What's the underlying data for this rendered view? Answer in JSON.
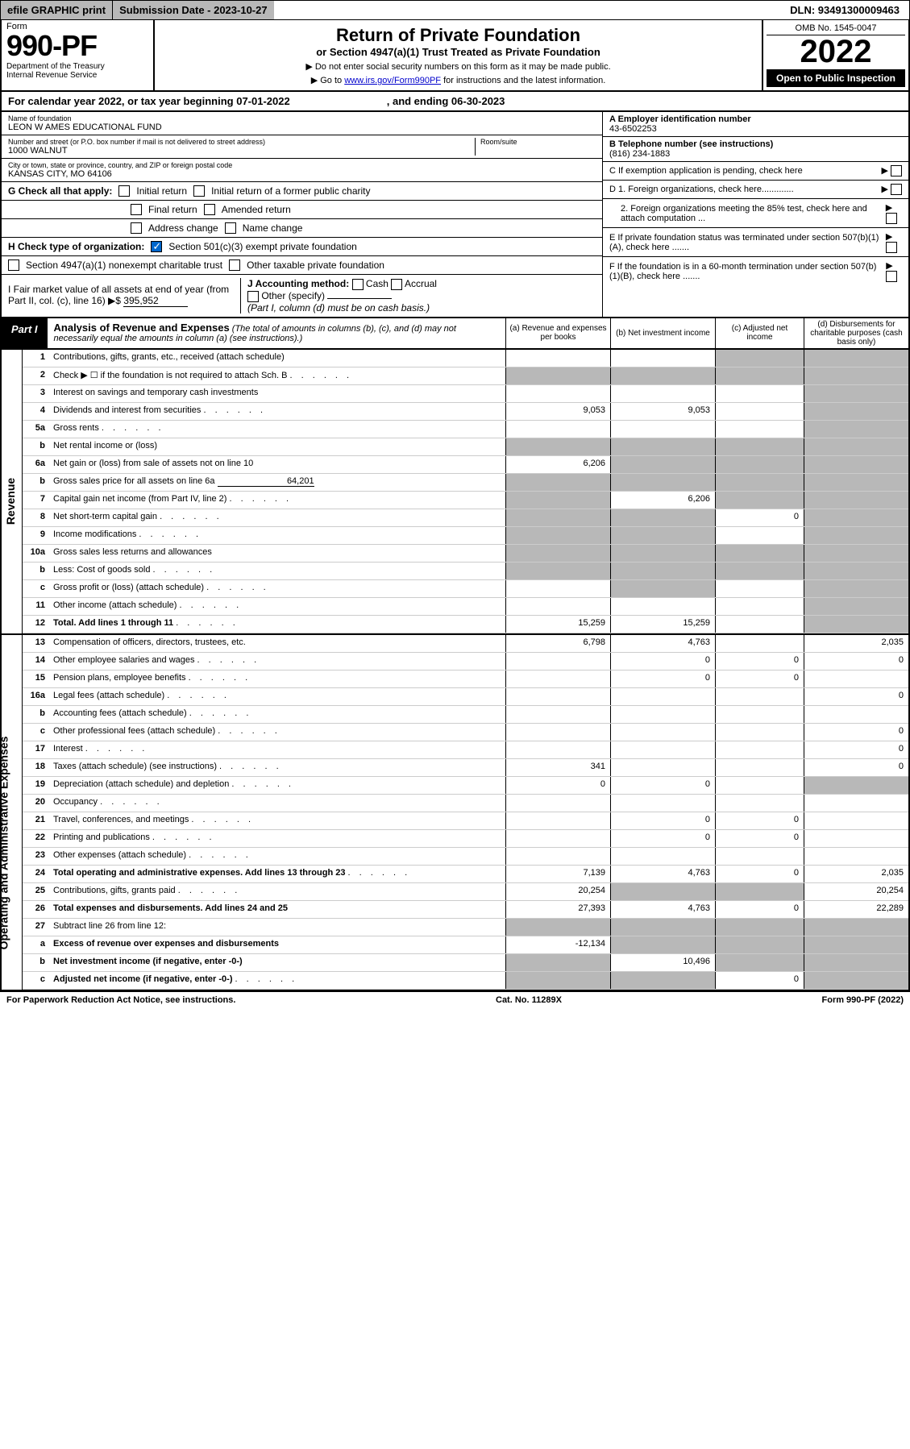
{
  "topbar": {
    "efile": "efile GRAPHIC print",
    "submission": "Submission Date - 2023-10-27",
    "dln": "DLN: 93491300009463"
  },
  "header": {
    "form_label": "Form",
    "form_num": "990-PF",
    "dept": "Department of the Treasury\nInternal Revenue Service",
    "title": "Return of Private Foundation",
    "subtitle": "or Section 4947(a)(1) Trust Treated as Private Foundation",
    "instr1": "▶ Do not enter social security numbers on this form as it may be made public.",
    "instr2": "▶ Go to",
    "link": "www.irs.gov/Form990PF",
    "instr3": "for instructions and the latest information.",
    "omb": "OMB No. 1545-0047",
    "year": "2022",
    "open": "Open to Public Inspection"
  },
  "cal": {
    "prefix": "For calendar year 2022, or tax year beginning 07-01-2022",
    "mid": ", and ending 06-30-2023"
  },
  "info": {
    "name_lbl": "Name of foundation",
    "name": "LEON W AMES EDUCATIONAL FUND",
    "addr_lbl": "Number and street (or P.O. box number if mail is not delivered to street address)",
    "addr": "1000 WALNUT",
    "room_lbl": "Room/suite",
    "city_lbl": "City or town, state or province, country, and ZIP or foreign postal code",
    "city": "KANSAS CITY, MO  64106",
    "ein_lbl": "A Employer identification number",
    "ein": "43-6502253",
    "phone_lbl": "B Telephone number (see instructions)",
    "phone": "(816) 234-1883",
    "c": "C If exemption application is pending, check here",
    "d1": "D 1. Foreign organizations, check here.............",
    "d2": "2. Foreign organizations meeting the 85% test, check here and attach computation ...",
    "e": "E If private foundation status was terminated under section 507(b)(1)(A), check here .......",
    "f": "F If the foundation is in a 60-month termination under section 507(b)(1)(B), check here .......",
    "g": "G Check all that apply:",
    "g_opts": [
      "Initial return",
      "Initial return of a former public charity",
      "Final return",
      "Amended return",
      "Address change",
      "Name change"
    ],
    "h": "H Check type of organization:",
    "h1": "Section 501(c)(3) exempt private foundation",
    "h2": "Section 4947(a)(1) nonexempt charitable trust",
    "h3": "Other taxable private foundation",
    "i": "I Fair market value of all assets at end of year (from Part II, col. (c), line 16) ▶$",
    "i_val": "395,952",
    "j": "J Accounting method:",
    "j_cash": "Cash",
    "j_accr": "Accrual",
    "j_other": "Other (specify)",
    "j_note": "(Part I, column (d) must be on cash basis.)"
  },
  "part1": {
    "label": "Part I",
    "title": "Analysis of Revenue and Expenses",
    "note": "(The total of amounts in columns (b), (c), and (d) may not necessarily equal the amounts in column (a) (see instructions).)",
    "col_a": "(a) Revenue and expenses per books",
    "col_b": "(b) Net investment income",
    "col_c": "(c) Adjusted net income",
    "col_d": "(d) Disbursements for charitable purposes (cash basis only)"
  },
  "side": {
    "rev": "Revenue",
    "exp": "Operating and Administrative Expenses"
  },
  "rows": [
    {
      "n": "1",
      "d": "Contributions, gifts, grants, etc., received (attach schedule)",
      "a": "",
      "b": "",
      "c": "s",
      "ds": "s"
    },
    {
      "n": "2",
      "d": "Check ▶ ☐ if the foundation is not required to attach Sch. B",
      "dots": true,
      "a": "s",
      "b": "s",
      "c": "s",
      "ds": "s"
    },
    {
      "n": "3",
      "d": "Interest on savings and temporary cash investments",
      "a": "",
      "b": "",
      "c": "",
      "ds": "s"
    },
    {
      "n": "4",
      "d": "Dividends and interest from securities",
      "dots": true,
      "a": "9,053",
      "b": "9,053",
      "c": "",
      "ds": "s"
    },
    {
      "n": "5a",
      "d": "Gross rents",
      "dots": true,
      "a": "",
      "b": "",
      "c": "",
      "ds": "s"
    },
    {
      "n": "b",
      "d": "Net rental income or (loss)",
      "a": "s",
      "b": "s",
      "c": "s",
      "ds": "s"
    },
    {
      "n": "6a",
      "d": "Net gain or (loss) from sale of assets not on line 10",
      "a": "6,206",
      "b": "s",
      "c": "s",
      "ds": "s"
    },
    {
      "n": "b",
      "d": "Gross sales price for all assets on line 6a",
      "uval": "64,201",
      "a": "s",
      "b": "s",
      "c": "s",
      "ds": "s"
    },
    {
      "n": "7",
      "d": "Capital gain net income (from Part IV, line 2)",
      "dots": true,
      "a": "s",
      "b": "6,206",
      "c": "s",
      "ds": "s"
    },
    {
      "n": "8",
      "d": "Net short-term capital gain",
      "dots": true,
      "a": "s",
      "b": "s",
      "c": "0",
      "ds": "s"
    },
    {
      "n": "9",
      "d": "Income modifications",
      "dots": true,
      "a": "s",
      "b": "s",
      "c": "",
      "ds": "s"
    },
    {
      "n": "10a",
      "d": "Gross sales less returns and allowances",
      "a": "s",
      "b": "s",
      "c": "s",
      "ds": "s"
    },
    {
      "n": "b",
      "d": "Less: Cost of goods sold",
      "dots": true,
      "a": "s",
      "b": "s",
      "c": "s",
      "ds": "s"
    },
    {
      "n": "c",
      "d": "Gross profit or (loss) (attach schedule)",
      "dots": true,
      "a": "",
      "b": "s",
      "c": "",
      "ds": "s"
    },
    {
      "n": "11",
      "d": "Other income (attach schedule)",
      "dots": true,
      "a": "",
      "b": "",
      "c": "",
      "ds": "s"
    },
    {
      "n": "12",
      "d": "Total. Add lines 1 through 11",
      "bold": true,
      "dots": true,
      "a": "15,259",
      "b": "15,259",
      "c": "",
      "ds": "s"
    },
    {
      "n": "13",
      "d": "Compensation of officers, directors, trustees, etc.",
      "a": "6,798",
      "b": "4,763",
      "c": "",
      "ds": "2,035"
    },
    {
      "n": "14",
      "d": "Other employee salaries and wages",
      "dots": true,
      "a": "",
      "b": "0",
      "c": "0",
      "ds": "0"
    },
    {
      "n": "15",
      "d": "Pension plans, employee benefits",
      "dots": true,
      "a": "",
      "b": "0",
      "c": "0",
      "ds": ""
    },
    {
      "n": "16a",
      "d": "Legal fees (attach schedule)",
      "dots": true,
      "a": "",
      "b": "",
      "c": "",
      "ds": "0"
    },
    {
      "n": "b",
      "d": "Accounting fees (attach schedule)",
      "dots": true,
      "a": "",
      "b": "",
      "c": "",
      "ds": ""
    },
    {
      "n": "c",
      "d": "Other professional fees (attach schedule)",
      "dots": true,
      "a": "",
      "b": "",
      "c": "",
      "ds": "0"
    },
    {
      "n": "17",
      "d": "Interest",
      "dots": true,
      "a": "",
      "b": "",
      "c": "",
      "ds": "0"
    },
    {
      "n": "18",
      "d": "Taxes (attach schedule) (see instructions)",
      "dots": true,
      "a": "341",
      "b": "",
      "c": "",
      "ds": "0"
    },
    {
      "n": "19",
      "d": "Depreciation (attach schedule) and depletion",
      "dots": true,
      "a": "0",
      "b": "0",
      "c": "",
      "ds": "s"
    },
    {
      "n": "20",
      "d": "Occupancy",
      "dots": true,
      "a": "",
      "b": "",
      "c": "",
      "ds": ""
    },
    {
      "n": "21",
      "d": "Travel, conferences, and meetings",
      "dots": true,
      "a": "",
      "b": "0",
      "c": "0",
      "ds": ""
    },
    {
      "n": "22",
      "d": "Printing and publications",
      "dots": true,
      "a": "",
      "b": "0",
      "c": "0",
      "ds": ""
    },
    {
      "n": "23",
      "d": "Other expenses (attach schedule)",
      "dots": true,
      "a": "",
      "b": "",
      "c": "",
      "ds": ""
    },
    {
      "n": "24",
      "d": "Total operating and administrative expenses. Add lines 13 through 23",
      "bold": true,
      "dots": true,
      "a": "7,139",
      "b": "4,763",
      "c": "0",
      "ds": "2,035"
    },
    {
      "n": "25",
      "d": "Contributions, gifts, grants paid",
      "dots": true,
      "a": "20,254",
      "b": "s",
      "c": "s",
      "ds": "20,254"
    },
    {
      "n": "26",
      "d": "Total expenses and disbursements. Add lines 24 and 25",
      "bold": true,
      "a": "27,393",
      "b": "4,763",
      "c": "0",
      "ds": "22,289"
    },
    {
      "n": "27",
      "d": "Subtract line 26 from line 12:",
      "a": "s",
      "b": "s",
      "c": "s",
      "ds": "s"
    },
    {
      "n": "a",
      "d": "Excess of revenue over expenses and disbursements",
      "bold": true,
      "a": "-12,134",
      "b": "s",
      "c": "s",
      "ds": "s"
    },
    {
      "n": "b",
      "d": "Net investment income (if negative, enter -0-)",
      "bold": true,
      "a": "s",
      "b": "10,496",
      "c": "s",
      "ds": "s"
    },
    {
      "n": "c",
      "d": "Adjusted net income (if negative, enter -0-)",
      "bold": true,
      "dots": true,
      "a": "s",
      "b": "s",
      "c": "0",
      "ds": "s"
    }
  ],
  "footer": {
    "left": "For Paperwork Reduction Act Notice, see instructions.",
    "mid": "Cat. No. 11289X",
    "right": "Form 990-PF (2022)"
  }
}
